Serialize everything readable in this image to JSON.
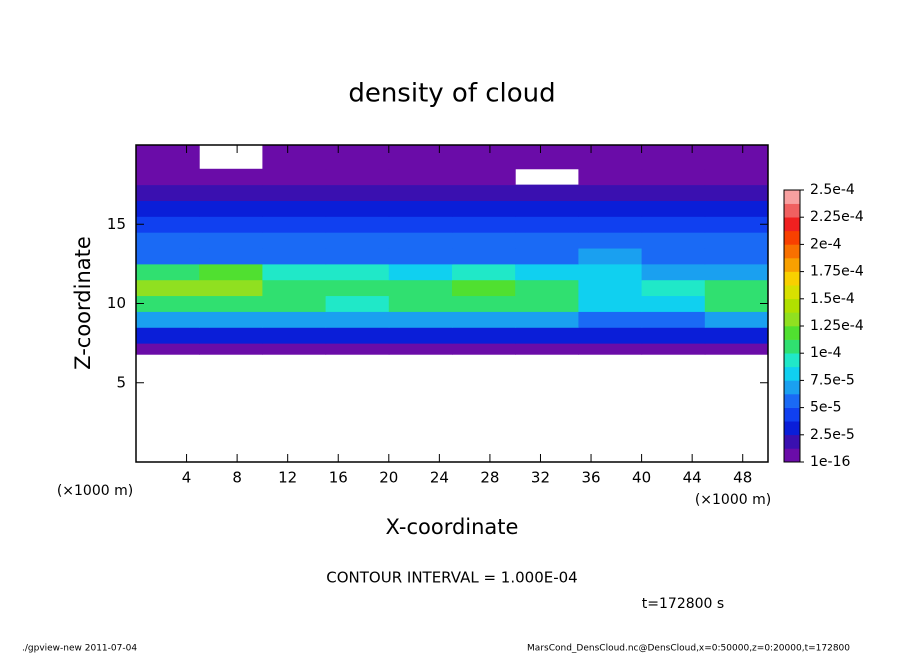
{
  "chart_data": {
    "type": "heatmap",
    "title": "density of cloud",
    "xlabel": "X-coordinate",
    "ylabel": "Z-coordinate",
    "x_unit": "(×1000 m)",
    "y_unit": "(×1000 m)",
    "contour_note": "CONTOUR INTERVAL = 1.000E-04",
    "time_note": "t=172800 s",
    "footer_left": "./gpview-new  2011-07-04",
    "footer_right": "MarsCond_DensCloud.nc@DensCloud,x=0:50000,z=0:20000,t=172800",
    "xlim": [
      0,
      50
    ],
    "ylim": [
      0,
      20
    ],
    "xticks": [
      4,
      8,
      12,
      16,
      20,
      24,
      28,
      32,
      36,
      40,
      44,
      48
    ],
    "yticks": [
      5,
      10,
      15
    ],
    "x_edges": [
      0,
      5,
      10,
      15,
      20,
      25,
      30,
      35,
      40,
      45,
      50
    ],
    "z_edges": [
      6.8,
      7.5,
      8.5,
      9.5,
      10.5,
      11.5,
      12.5,
      13.5,
      14.5,
      15.5,
      16.5,
      17.5,
      18.5,
      20
    ],
    "values": [
      [
        8e-06,
        8e-06,
        8e-06,
        8e-06,
        8e-06,
        8e-06,
        8e-06,
        8e-06,
        8e-06,
        8e-06
      ],
      [
        3e-05,
        3e-05,
        3e-05,
        3e-05,
        3e-05,
        3e-05,
        3e-05,
        3e-05,
        3e-05,
        3e-05
      ],
      [
        7e-05,
        7e-05,
        7e-05,
        7e-05,
        7e-05,
        7e-05,
        7e-05,
        5e-05,
        5e-05,
        7e-05
      ],
      [
        0.00011,
        0.00011,
        0.0001,
        9e-05,
        0.0001,
        0.000105,
        0.0001,
        8e-05,
        8e-05,
        0.0001
      ],
      [
        0.000125,
        0.00013,
        0.00011,
        0.0001,
        0.00011,
        0.000115,
        0.0001,
        8e-05,
        9e-05,
        0.000105
      ],
      [
        0.0001,
        0.00012,
        9e-05,
        9e-05,
        8.5e-05,
        9e-05,
        8.5e-05,
        8e-05,
        7e-05,
        7e-05
      ],
      [
        6e-05,
        6e-05,
        6e-05,
        6e-05,
        6e-05,
        6e-05,
        6e-05,
        7e-05,
        6e-05,
        6e-05
      ],
      [
        5e-05,
        5e-05,
        5e-05,
        5e-05,
        5e-05,
        5e-05,
        5e-05,
        5e-05,
        5e-05,
        5e-05
      ],
      [
        4e-05,
        4e-05,
        4e-05,
        4e-05,
        4e-05,
        4e-05,
        4e-05,
        4e-05,
        4e-05,
        4e-05
      ],
      [
        3e-05,
        3e-05,
        3e-05,
        3e-05,
        3e-05,
        3e-05,
        3e-05,
        3e-05,
        3e-05,
        3e-05
      ],
      [
        2e-05,
        2e-05,
        2e-05,
        2e-05,
        2e-05,
        2e-05,
        2e-05,
        2e-05,
        2e-05,
        2e-05
      ],
      [
        1e-05,
        1e-05,
        1e-05,
        1e-05,
        1e-05,
        1e-05,
        null,
        1e-05,
        1e-05,
        1e-05
      ],
      [
        5e-06,
        null,
        5e-06,
        5e-06,
        5e-06,
        5e-06,
        5e-06,
        5e-06,
        5e-06,
        5e-06
      ]
    ],
    "levels": [
      0,
      1.25e-05,
      2.5e-05,
      3.75e-05,
      5e-05,
      6.25e-05,
      7.5e-05,
      8.75e-05,
      0.0001,
      0.0001125,
      0.000125,
      0.0001375,
      0.00015,
      0.0001625,
      0.000175,
      0.0001875,
      0.0002,
      0.0002125,
      0.000225,
      0.0002375,
      0.00025
    ],
    "colors": [
      "#6a0ca8",
      "#3a10b0",
      "#0a1ed8",
      "#1040f0",
      "#1a6af5",
      "#1aa0f0",
      "#10d0f0",
      "#20e8c8",
      "#30e070",
      "#50e030",
      "#90e020",
      "#b0e000",
      "#d8e000",
      "#f8d000",
      "#f8a000",
      "#f87000",
      "#f84000",
      "#f02020",
      "#f06060",
      "#f8a0a0"
    ],
    "colorbar_ticks": [
      {
        "value": 1e-16,
        "label": "1e-16"
      },
      {
        "value": 2.5e-05,
        "label": "2.5e-5"
      },
      {
        "value": 5e-05,
        "label": "5e-5"
      },
      {
        "value": 7.5e-05,
        "label": "7.5e-5"
      },
      {
        "value": 0.0001,
        "label": "1e-4"
      },
      {
        "value": 0.000125,
        "label": "1.25e-4"
      },
      {
        "value": 0.00015,
        "label": "1.5e-4"
      },
      {
        "value": 0.000175,
        "label": "1.75e-4"
      },
      {
        "value": 0.0002,
        "label": "2e-4"
      },
      {
        "value": 0.000225,
        "label": "2.25e-4"
      },
      {
        "value": 0.00025,
        "label": "2.5e-4"
      }
    ]
  }
}
